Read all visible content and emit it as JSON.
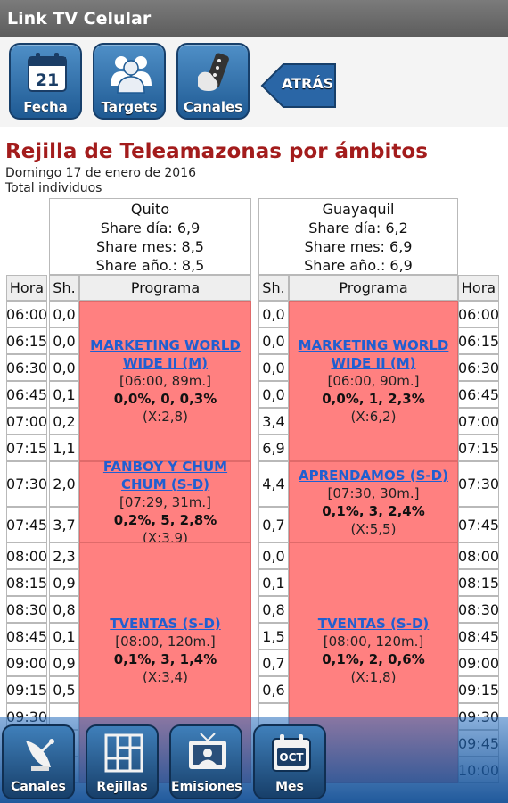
{
  "app": {
    "title": "Link TV Celular"
  },
  "toolbar": {
    "fecha_label": "Fecha",
    "fecha_day": "21",
    "targets_label": "Targets",
    "canales_label": "Canales",
    "atras_label": "ATRÁS"
  },
  "header": {
    "title": "Rejilla de Teleamazonas por ámbitos",
    "date": "Domingo 17 de enero de 2016",
    "universe": "Total individuos"
  },
  "quito": {
    "name": "Quito",
    "share_dia": "Share día: 6,9",
    "share_mes": "Share mes: 8,5",
    "share_anio": "Share año.: 8,5"
  },
  "guayaquil": {
    "name": "Guayaquil",
    "share_dia": "Share día: 6,2",
    "share_mes": "Share mes: 6,9",
    "share_anio": "Share año.: 6,9"
  },
  "columns": {
    "hora": "Hora",
    "sh": "Sh.",
    "programa": "Programa"
  },
  "rows": [
    {
      "time": "06:00",
      "q": "0,0",
      "g": "0,0"
    },
    {
      "time": "06:15",
      "q": "0,0",
      "g": "0,0"
    },
    {
      "time": "06:30",
      "q": "0,0",
      "g": "0,0"
    },
    {
      "time": "06:45",
      "q": "0,1",
      "g": "0,0"
    },
    {
      "time": "07:00",
      "q": "0,2",
      "g": "3,4"
    },
    {
      "time": "07:15",
      "q": "1,1",
      "g": "6,9"
    },
    {
      "time": "07:30",
      "q": "2,0",
      "g": "4,4"
    },
    {
      "time": "07:45",
      "q": "3,7",
      "g": "0,7"
    },
    {
      "time": "08:00",
      "q": "2,3",
      "g": "0,0"
    },
    {
      "time": "08:15",
      "q": "0,9",
      "g": "0,1"
    },
    {
      "time": "08:30",
      "q": "0,8",
      "g": "0,8"
    },
    {
      "time": "08:45",
      "q": "0,1",
      "g": "1,5"
    },
    {
      "time": "09:00",
      "q": "0,9",
      "g": "0,7"
    },
    {
      "time": "09:15",
      "q": "0,5",
      "g": "0,6"
    },
    {
      "time": "09:30",
      "q": "",
      "g": ""
    },
    {
      "time": "09:45",
      "q": "",
      "g": ""
    },
    {
      "time": "10:00",
      "q": "",
      "g": ""
    }
  ],
  "programs_quito": [
    {
      "name": "MARKETING WORLD WIDE II (M)",
      "slot": "[06:00, 89m.]",
      "values": "0,0%, 0, 0,3%",
      "index": "(X:2,8)"
    },
    {
      "name": "FANBOY Y CHUM CHUM (S-D)",
      "slot": "[07:29, 31m.]",
      "values": "0,2%, 5, 2,8%",
      "index": "(X:3,9)"
    },
    {
      "name": "TVENTAS (S-D)",
      "slot": "[08:00, 120m.]",
      "values": "0,1%, 3, 1,4%",
      "index": "(X:3,4)"
    }
  ],
  "programs_guayaquil": [
    {
      "name": "MARKETING WORLD WIDE II (M)",
      "slot": "[06:00, 90m.]",
      "values": "0,0%, 1, 2,3%",
      "index": "(X:6,2)"
    },
    {
      "name": "APRENDAMOS (S-D)",
      "slot": "[07:30, 30m.]",
      "values": "0,1%, 3, 2,4%",
      "index": "(X:5,5)"
    },
    {
      "name": "TVENTAS (S-D)",
      "slot": "[08:00, 120m.]",
      "values": "0,1%, 2, 0,6%",
      "index": "(X:1,8)"
    }
  ],
  "bottom": {
    "canales_label": "Canales",
    "rejillas_label": "Rejillas",
    "emisiones_label": "Emisiones",
    "mes_label": "Mes",
    "mes_icon_text": "OCT"
  },
  "colors": {
    "program_bg": "#ff8080",
    "title_red": "#a31c1c",
    "link_blue": "#1f5fd1",
    "button_blue": "#1f5a93"
  },
  "icons": [
    "calendar-icon",
    "people-icon",
    "remote-icon",
    "back-arrow-icon",
    "satellite-dish-icon",
    "grid-icon",
    "tv-icon",
    "month-calendar-icon"
  ]
}
